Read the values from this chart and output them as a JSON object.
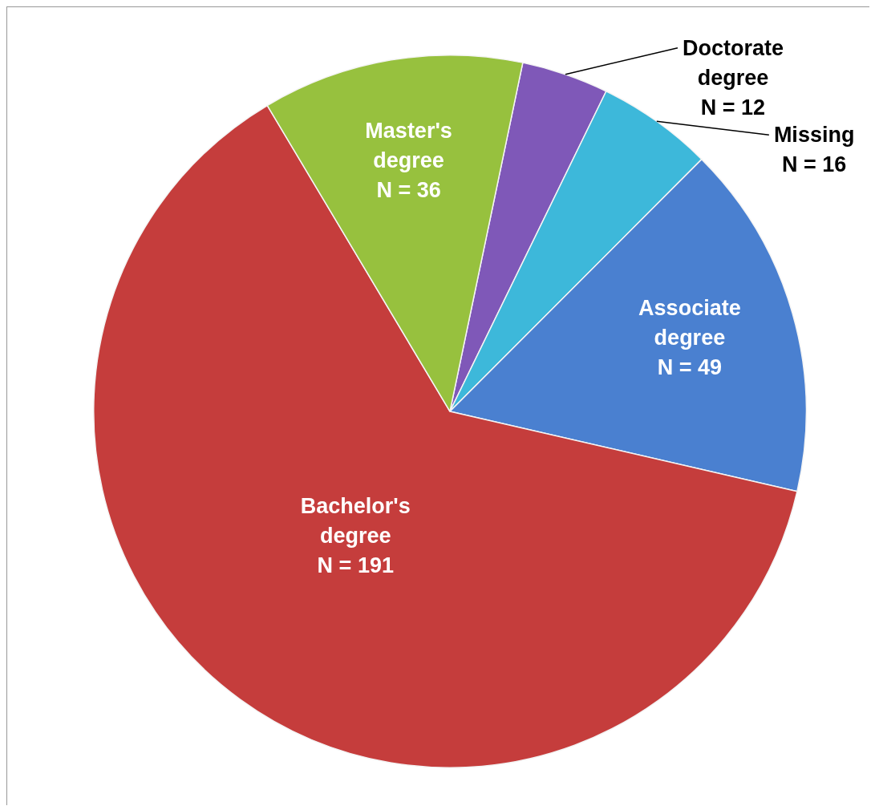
{
  "chart_data": {
    "type": "pie",
    "categories": [
      "Doctorate degree",
      "Missing",
      "Associate degree",
      "Bachelor's degree",
      "Master's degree"
    ],
    "values": [
      12,
      16,
      49,
      191,
      36
    ],
    "value_labels": [
      "N = 12",
      "N = 16",
      "N = 49",
      "N = 191",
      "N = 36"
    ],
    "colors": [
      "#7f58b8",
      "#3db8da",
      "#4a80d0",
      "#c53d3c",
      "#97c13e"
    ],
    "legend": false
  }
}
